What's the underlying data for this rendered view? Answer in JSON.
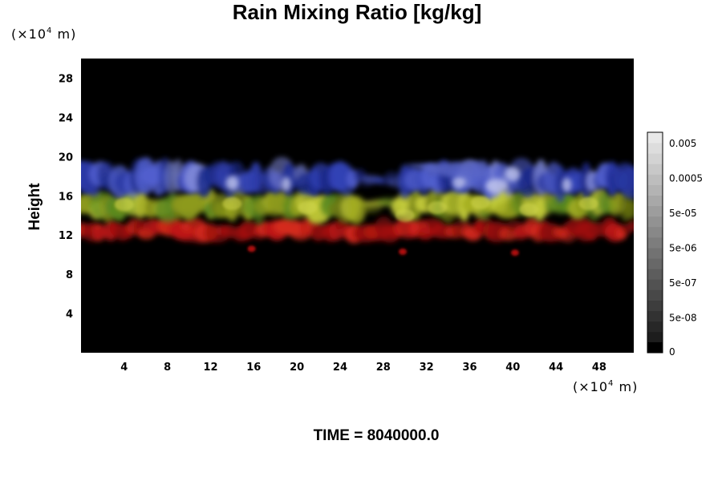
{
  "chart_data": {
    "type": "heatmap",
    "title": "Rain Mixing Ratio [kg/kg]",
    "ylabel": "Height",
    "xlabel": "",
    "x_unit": {
      "prefix": "(×10",
      "exponent": "4",
      "suffix": " m)"
    },
    "y_unit": {
      "prefix": "(×10",
      "exponent": "4",
      "suffix": " m)"
    },
    "xlim": [
      0,
      51.2
    ],
    "ylim": [
      0,
      30
    ],
    "x_ticks": [
      4,
      8,
      12,
      16,
      20,
      24,
      28,
      32,
      36,
      40,
      44,
      48
    ],
    "y_ticks": [
      4,
      8,
      12,
      16,
      20,
      24,
      28
    ],
    "time_label": "TIME = 8040000.0",
    "background_color": "#000000",
    "colorbar": {
      "scale": "log",
      "labels": [
        "0.005",
        "0.0005",
        "5e-05",
        "5e-06",
        "5e-07",
        "5e-08",
        "0"
      ],
      "levels": 21
    },
    "layers": [
      {
        "band": "blue",
        "color": "#3a48c8",
        "y_range": [
          16,
          19.5
        ]
      },
      {
        "band": "yellow",
        "color": "#b8c028",
        "y_range": [
          13.5,
          16.5
        ]
      },
      {
        "band": "red",
        "color": "#c01818",
        "y_range": [
          11.5,
          13.5
        ]
      }
    ]
  }
}
